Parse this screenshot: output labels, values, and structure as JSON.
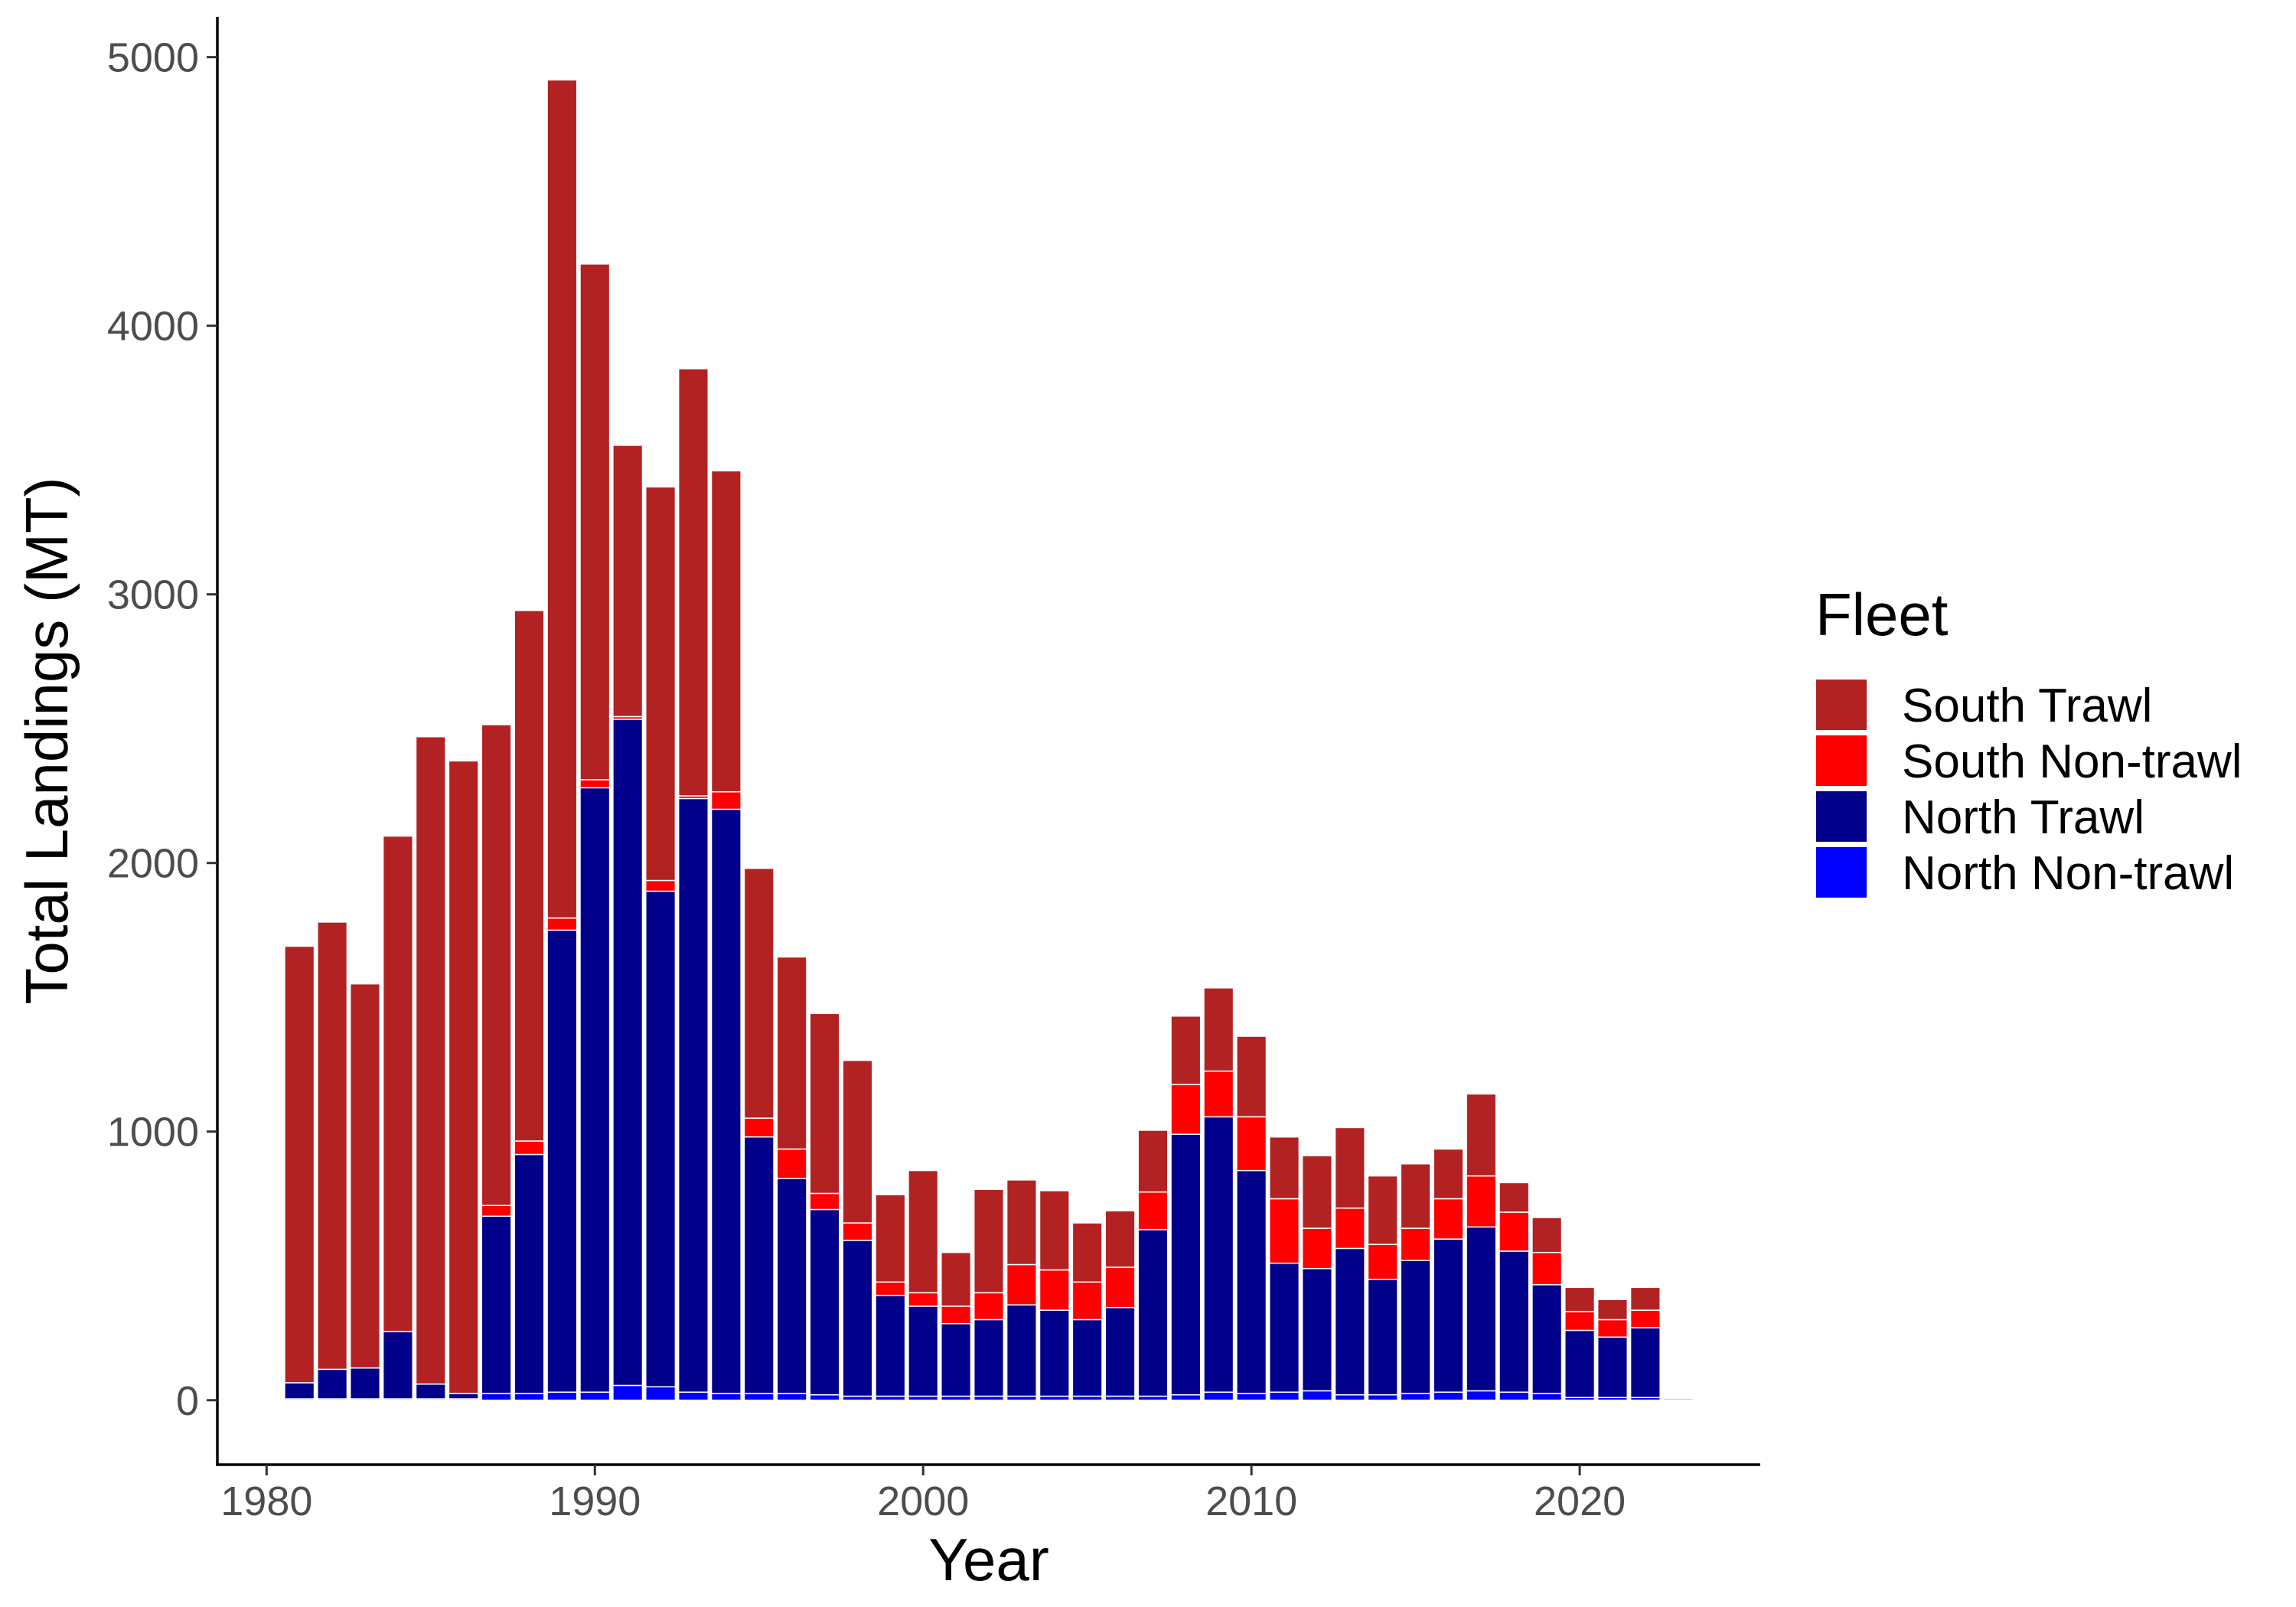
{
  "chart_data": {
    "type": "bar",
    "stacked": true,
    "xlabel": "Year",
    "ylabel": "Total Landings (MT)",
    "xlim": [
      1978.5,
      2025.5
    ],
    "ylim": [
      -240,
      5150
    ],
    "x_ticks": [
      1980,
      1990,
      2000,
      2010,
      2020
    ],
    "y_ticks": [
      0,
      1000,
      2000,
      3000,
      4000,
      5000
    ],
    "grid": false,
    "legend": {
      "title": "Fleet",
      "position": "right"
    },
    "x": [
      1981,
      1982,
      1983,
      1984,
      1985,
      1986,
      1987,
      1988,
      1989,
      1990,
      1991,
      1992,
      1993,
      1994,
      1995,
      1996,
      1997,
      1998,
      1999,
      2000,
      2001,
      2002,
      2003,
      2004,
      2005,
      2006,
      2007,
      2008,
      2009,
      2010,
      2011,
      2012,
      2013,
      2014,
      2015,
      2016,
      2017,
      2018,
      2019,
      2020,
      2021,
      2022,
      2023
    ],
    "series": [
      {
        "name": "North Non-trawl",
        "color": "#0000ff",
        "values": [
          5,
          5,
          5,
          5,
          5,
          5,
          25,
          25,
          30,
          30,
          55,
          50,
          30,
          25,
          25,
          25,
          20,
          15,
          15,
          15,
          15,
          15,
          15,
          15,
          15,
          15,
          15,
          20,
          30,
          25,
          30,
          35,
          20,
          20,
          25,
          30,
          35,
          30,
          25,
          10,
          10,
          10,
          5
        ]
      },
      {
        "name": "North Trawl",
        "color": "#00008b",
        "values": [
          60,
          110,
          115,
          250,
          55,
          20,
          660,
          890,
          1720,
          2250,
          2480,
          1845,
          2210,
          2175,
          955,
          800,
          690,
          580,
          375,
          335,
          270,
          285,
          340,
          320,
          285,
          330,
          620,
          970,
          1025,
          830,
          480,
          455,
          545,
          430,
          495,
          570,
          610,
          525,
          405,
          250,
          225,
          260,
          0
        ]
      },
      {
        "name": "South Non-trawl",
        "color": "#ff0000",
        "values": [
          0,
          0,
          0,
          0,
          0,
          0,
          40,
          50,
          45,
          30,
          10,
          40,
          10,
          65,
          70,
          110,
          60,
          65,
          50,
          50,
          65,
          100,
          150,
          150,
          140,
          150,
          140,
          185,
          170,
          200,
          240,
          150,
          150,
          130,
          120,
          150,
          190,
          145,
          120,
          70,
          65,
          65,
          0
        ]
      },
      {
        "name": "South Trawl",
        "color": "#b22222",
        "values": [
          1625,
          1665,
          1430,
          1845,
          2410,
          2355,
          1790,
          1975,
          3120,
          1920,
          1010,
          1465,
          1590,
          1195,
          930,
          715,
          670,
          605,
          325,
          455,
          200,
          385,
          315,
          295,
          220,
          210,
          230,
          255,
          310,
          300,
          230,
          270,
          300,
          255,
          240,
          185,
          305,
          110,
          130,
          90,
          75,
          85,
          0
        ]
      }
    ],
    "legend_order": [
      "South Trawl",
      "South Non-trawl",
      "North Trawl",
      "North Non-trawl"
    ]
  }
}
